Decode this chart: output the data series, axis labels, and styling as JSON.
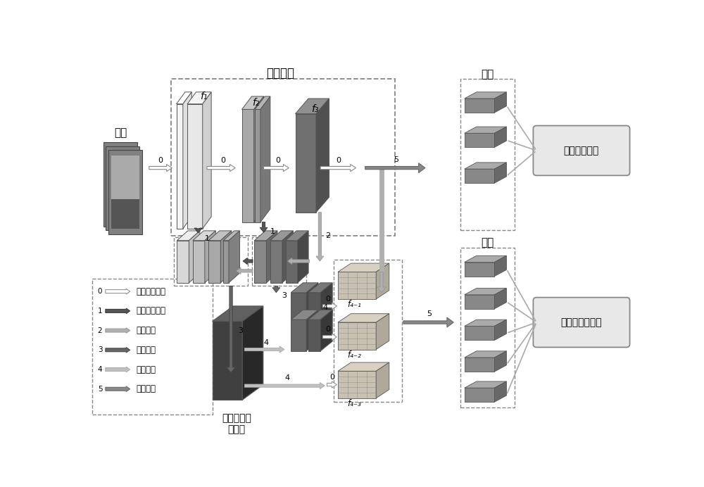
{
  "bg_color": "#ffffff",
  "labels": {
    "input": "输入",
    "backbone": "骨干网络",
    "global": "全局",
    "parts": "部件",
    "triplet_loss": "三元损失函数",
    "cross_entropy": "交叉熵损失函数",
    "fused_line1": "融合的多尺",
    "fused_line2": "度特征",
    "f1": "f₁",
    "f2": "f₂",
    "f3": "f₃",
    "f41": "f₄₋₁",
    "f42": "f₄₋₂",
    "f43": "f₄₋₃"
  },
  "legend": {
    "0": "骨干网络各层",
    "1": "侧向连接模块",
    "2": "上洗模块",
    "3": "融合模块",
    "4": "平滑模块",
    "5": "缩减模块"
  },
  "colors": {
    "f1_front": "#f0f0f0",
    "f1_top": "#ffffff",
    "f1_side": "#d8d8d8",
    "f2_front": "#a8a8a8",
    "f2_top": "#c8c8c8",
    "f2_side": "#888888",
    "f3_front": "#707070",
    "f3_top": "#909090",
    "f3_side": "#505050",
    "lat_l_front": "#d0d0d0",
    "lat_l_top": "#e8e8e8",
    "lat_l_side": "#b8b8b8",
    "lat_r_front": "#888888",
    "lat_r_top": "#a8a8a8",
    "lat_r_side": "#686868",
    "fuse_front": "#606060",
    "fuse_top": "#808080",
    "fuse_side": "#484848",
    "big_front": "#404040",
    "big_top": "#606060",
    "big_side": "#282828",
    "small_front": "#808080",
    "small_top": "#a0a0a0",
    "small_side": "#606060",
    "brick_front": "#888888",
    "brick_top": "#aaaaaa",
    "brick_side": "#686868"
  }
}
